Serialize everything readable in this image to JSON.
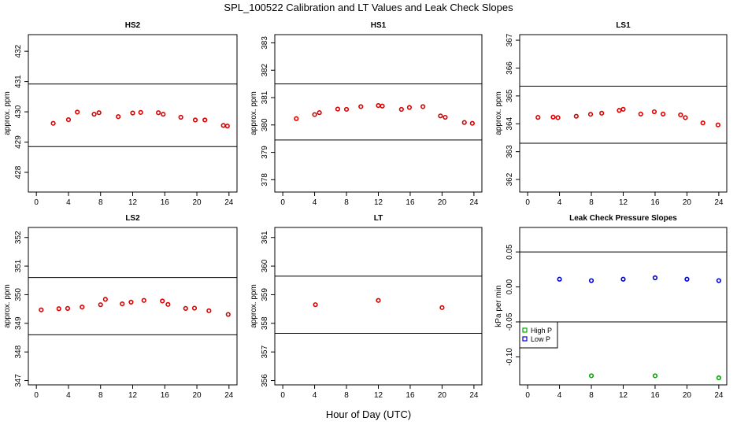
{
  "title": "SPL_100522  Calibration and LT Values and Leak Check Slopes",
  "xlabel": "Hour of Day (UTC)",
  "chart_data": [
    {
      "type": "scatter",
      "title": "HS2",
      "ylabel": "approx. ppm",
      "xlim": [
        -1,
        25
      ],
      "xticks": [
        0,
        4,
        8,
        12,
        16,
        20,
        24
      ],
      "ylim": [
        427.35,
        432.55
      ],
      "yticks": [
        428,
        429,
        430,
        431,
        432
      ],
      "hlines": [
        428.85,
        430.92
      ],
      "color": "#dd0000",
      "x": [
        2.1,
        4.0,
        5.1,
        7.2,
        7.8,
        10.2,
        12.0,
        13.0,
        15.2,
        15.8,
        18.0,
        19.8,
        21.0,
        23.3,
        23.8
      ],
      "y": [
        429.62,
        429.74,
        429.99,
        429.92,
        429.97,
        429.84,
        429.96,
        429.98,
        429.97,
        429.92,
        429.82,
        429.73,
        429.73,
        429.55,
        429.53
      ]
    },
    {
      "type": "scatter",
      "title": "HS1",
      "ylabel": "approx. ppm",
      "xlim": [
        -1,
        25
      ],
      "xticks": [
        0,
        4,
        8,
        12,
        16,
        20,
        24
      ],
      "ylim": [
        377.55,
        383.3
      ],
      "yticks": [
        378,
        379,
        380,
        381,
        382,
        383
      ],
      "hlines": [
        379.45,
        381.5
      ],
      "color": "#dd0000",
      "x": [
        1.7,
        4.0,
        4.6,
        6.9,
        8.0,
        9.8,
        12.0,
        12.5,
        14.9,
        15.9,
        17.6,
        19.8,
        20.4,
        22.8,
        23.8
      ],
      "y": [
        380.23,
        380.38,
        380.45,
        380.58,
        380.57,
        380.67,
        380.71,
        380.69,
        380.57,
        380.64,
        380.67,
        380.33,
        380.28,
        380.09,
        380.06
      ]
    },
    {
      "type": "scatter",
      "title": "LS1",
      "ylabel": "approx. ppm",
      "xlim": [
        -1,
        25
      ],
      "xticks": [
        0,
        4,
        8,
        12,
        16,
        20,
        24
      ],
      "ylim": [
        361.55,
        367.2
      ],
      "yticks": [
        362,
        363,
        364,
        365,
        366,
        367
      ],
      "hlines": [
        363.3,
        365.35
      ],
      "color": "#dd0000",
      "x": [
        1.3,
        3.2,
        3.8,
        6.1,
        7.9,
        9.3,
        11.5,
        12.0,
        14.2,
        15.9,
        17.0,
        19.2,
        19.8,
        22.0,
        23.9
      ],
      "y": [
        364.23,
        364.24,
        364.22,
        364.27,
        364.34,
        364.38,
        364.48,
        364.52,
        364.35,
        364.43,
        364.35,
        364.32,
        364.22,
        364.03,
        363.96
      ]
    },
    {
      "type": "scatter",
      "title": "LS2",
      "ylabel": "approx. ppm",
      "xlim": [
        -1,
        25
      ],
      "xticks": [
        0,
        4,
        8,
        12,
        16,
        20,
        24
      ],
      "ylim": [
        346.85,
        352.35
      ],
      "yticks": [
        347,
        348,
        349,
        350,
        351,
        352
      ],
      "hlines": [
        348.6,
        350.6
      ],
      "color": "#dd0000",
      "x": [
        0.6,
        2.8,
        3.9,
        5.7,
        8.0,
        8.6,
        10.7,
        11.8,
        13.4,
        15.7,
        16.4,
        18.6,
        19.7,
        21.5,
        23.9
      ],
      "y": [
        349.47,
        349.51,
        349.52,
        349.57,
        349.65,
        349.84,
        349.68,
        349.74,
        349.8,
        349.78,
        349.66,
        349.52,
        349.53,
        349.44,
        349.31
      ]
    },
    {
      "type": "scatter",
      "title": "LT",
      "ylabel": "approx. ppm",
      "xlim": [
        -1,
        25
      ],
      "xticks": [
        0,
        4,
        8,
        12,
        16,
        20,
        24
      ],
      "ylim": [
        355.85,
        361.35
      ],
      "yticks": [
        356,
        357,
        358,
        359,
        360,
        361
      ],
      "hlines": [
        357.65,
        359.65
      ],
      "color": "#dd0000",
      "x": [
        4.1,
        12.0,
        20.0
      ],
      "y": [
        358.65,
        358.8,
        358.55
      ]
    },
    {
      "type": "scatter",
      "title": "Leak Check Pressure Slopes",
      "ylabel": "kPa per min",
      "xlim": [
        -1,
        25
      ],
      "xticks": [
        0,
        4,
        8,
        12,
        16,
        20,
        24
      ],
      "ylim": [
        -0.14,
        0.085
      ],
      "yticks": [
        -0.1,
        -0.05,
        0.0,
        0.05
      ],
      "ytick_labels": [
        "-0.10",
        "-0.05",
        "0.00",
        "0.05"
      ],
      "hlines": [
        -0.05,
        0.05
      ],
      "legend": {
        "position": "bottom-left",
        "entries": [
          "High P",
          "Low P"
        ]
      },
      "series": [
        {
          "name": "High P",
          "color": "#00aa00",
          "x": [
            8.0,
            16.0,
            24.0
          ],
          "y": [
            -0.127,
            -0.127,
            -0.13
          ]
        },
        {
          "name": "Low P",
          "color": "#0000cc",
          "x": [
            4.0,
            8.0,
            12.0,
            16.0,
            20.0,
            24.0
          ],
          "y": [
            0.011,
            0.009,
            0.011,
            0.013,
            0.011,
            0.009
          ]
        }
      ]
    }
  ]
}
